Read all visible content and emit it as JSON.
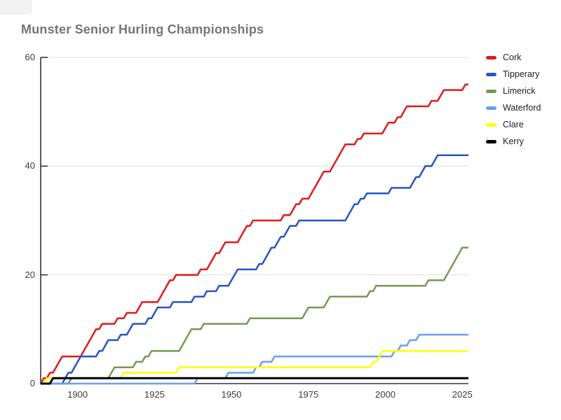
{
  "page": {
    "title": "Munster Senior Hurling Championships"
  },
  "chart_data": {
    "type": "line",
    "subtype": "cumulative-step",
    "title": "Munster Senior Hurling Championships",
    "xlabel": "",
    "ylabel": "",
    "xlim": [
      1888,
      2027
    ],
    "ylim": [
      0,
      60
    ],
    "x_ticks": [
      1900,
      1925,
      1950,
      1975,
      2000,
      2025
    ],
    "y_ticks": [
      0,
      20,
      40,
      60
    ],
    "grid": "horizontal",
    "legend_position": "right",
    "colors": {
      "axis": "#333333",
      "gridline": "#e6e6e6",
      "tick_label": "#3c3c3c",
      "title": "#757575"
    },
    "series": [
      {
        "name": "Cork",
        "color": "#e11a1c",
        "final_total": 55,
        "win_years": [
          1888,
          1890,
          1892,
          1893,
          1894,
          1901,
          1902,
          1903,
          1904,
          1905,
          1907,
          1912,
          1915,
          1919,
          1920,
          1926,
          1927,
          1928,
          1929,
          1931,
          1939,
          1942,
          1943,
          1944,
          1946,
          1947,
          1952,
          1953,
          1954,
          1956,
          1966,
          1969,
          1970,
          1972,
          1975,
          1976,
          1977,
          1978,
          1979,
          1982,
          1983,
          1984,
          1985,
          1986,
          1990,
          1992,
          1999,
          2000,
          2003,
          2005,
          2006,
          2014,
          2017,
          2018,
          2025
        ]
      },
      {
        "name": "Tipperary",
        "color": "#2456c4",
        "final_total": 42,
        "win_years": [
          1895,
          1896,
          1898,
          1899,
          1900,
          1906,
          1908,
          1909,
          1913,
          1916,
          1917,
          1922,
          1924,
          1925,
          1930,
          1937,
          1941,
          1945,
          1949,
          1950,
          1951,
          1958,
          1960,
          1961,
          1962,
          1964,
          1965,
          1967,
          1968,
          1971,
          1987,
          1988,
          1989,
          1991,
          1993,
          2001,
          2008,
          2009,
          2011,
          2012,
          2015,
          2016
        ]
      },
      {
        "name": "Limerick",
        "color": "#759a50",
        "final_total": 25,
        "win_years": [
          1897,
          1910,
          1911,
          1918,
          1921,
          1923,
          1933,
          1934,
          1935,
          1936,
          1940,
          1955,
          1973,
          1974,
          1980,
          1981,
          1994,
          1996,
          2013,
          2019,
          2020,
          2021,
          2022,
          2023,
          2024
        ]
      },
      {
        "name": "Waterford",
        "color": "#6d9eeb",
        "final_total": 9,
        "win_years": [
          1938,
          1948,
          1957,
          1959,
          1963,
          2002,
          2004,
          2007,
          2010
        ]
      },
      {
        "name": "Clare",
        "color": "#ffff00",
        "final_total": 6,
        "win_years": [
          1889,
          1914,
          1932,
          1995,
          1997,
          1998
        ]
      },
      {
        "name": "Kerry",
        "color": "#000000",
        "final_total": 1,
        "win_years": [
          1891
        ]
      }
    ]
  }
}
